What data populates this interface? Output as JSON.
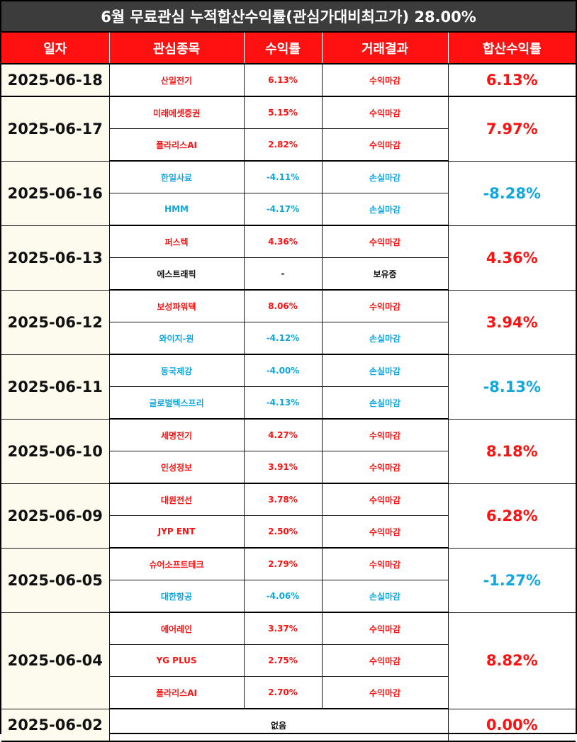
{
  "title": "6월 무료관심 누적합산수익률(관심가대비최고가) 28.00%",
  "headers": [
    "일자",
    "관심종목",
    "수익률",
    "거래결과",
    "합산수익률"
  ],
  "colors": {
    "header_bg": "#ff1111",
    "title_bg": "#3c3c3c",
    "gain": "#ff1111",
    "loss": "#10a6e0",
    "date_bg": "#fdfbee"
  },
  "groups": [
    {
      "date": "2025-06-18",
      "total": "6.13%",
      "total_class": "gain",
      "rows": [
        {
          "stock": "산일전기",
          "return": "6.13%",
          "result": "수익마감",
          "cls": "gain"
        }
      ]
    },
    {
      "date": "2025-06-17",
      "total": "7.97%",
      "total_class": "gain",
      "rows": [
        {
          "stock": "미래에셋증권",
          "return": "5.15%",
          "result": "수익마감",
          "cls": "gain"
        },
        {
          "stock": "폴라리스AI",
          "return": "2.82%",
          "result": "수익마감",
          "cls": "gain"
        }
      ]
    },
    {
      "date": "2025-06-16",
      "total": "-8.28%",
      "total_class": "loss",
      "rows": [
        {
          "stock": "한일사료",
          "return": "-4.11%",
          "result": "손실마감",
          "cls": "loss"
        },
        {
          "stock": "HMM",
          "return": "-4.17%",
          "result": "손실마감",
          "cls": "loss"
        }
      ]
    },
    {
      "date": "2025-06-13",
      "total": "4.36%",
      "total_class": "gain",
      "rows": [
        {
          "stock": "퍼스텍",
          "return": "4.36%",
          "result": "수익마감",
          "cls": "gain"
        },
        {
          "stock": "에스트래픽",
          "return": "-",
          "result": "보유중",
          "cls": "hold"
        }
      ]
    },
    {
      "date": "2025-06-12",
      "total": "3.94%",
      "total_class": "gain",
      "rows": [
        {
          "stock": "보성파워텍",
          "return": "8.06%",
          "result": "수익마감",
          "cls": "gain"
        },
        {
          "stock": "와이지-원",
          "return": "-4.12%",
          "result": "손실마감",
          "cls": "loss"
        }
      ]
    },
    {
      "date": "2025-06-11",
      "total": "-8.13%",
      "total_class": "loss",
      "rows": [
        {
          "stock": "동국제강",
          "return": "-4.00%",
          "result": "손실마감",
          "cls": "loss"
        },
        {
          "stock": "글로벌텍스프리",
          "return": "-4.13%",
          "result": "손실마감",
          "cls": "loss"
        }
      ]
    },
    {
      "date": "2025-06-10",
      "total": "8.18%",
      "total_class": "gain",
      "rows": [
        {
          "stock": "세명전기",
          "return": "4.27%",
          "result": "수익마감",
          "cls": "gain"
        },
        {
          "stock": "인성정보",
          "return": "3.91%",
          "result": "수익마감",
          "cls": "gain"
        }
      ]
    },
    {
      "date": "2025-06-09",
      "total": "6.28%",
      "total_class": "gain",
      "rows": [
        {
          "stock": "대원전선",
          "return": "3.78%",
          "result": "수익마감",
          "cls": "gain"
        },
        {
          "stock": "JYP ENT",
          "return": "2.50%",
          "result": "수익마감",
          "cls": "gain"
        }
      ]
    },
    {
      "date": "2025-06-05",
      "total": "-1.27%",
      "total_class": "loss",
      "rows": [
        {
          "stock": "슈어소프트테크",
          "return": "2.79%",
          "result": "수익마감",
          "cls": "gain"
        },
        {
          "stock": "대한항공",
          "return": "-4.06%",
          "result": "손실마감",
          "cls": "loss"
        }
      ]
    },
    {
      "date": "2025-06-04",
      "total": "8.82%",
      "total_class": "gain",
      "rows": [
        {
          "stock": "에어레인",
          "return": "3.37%",
          "result": "수익마감",
          "cls": "gain"
        },
        {
          "stock": "YG PLUS",
          "return": "2.75%",
          "result": "수익마감",
          "cls": "gain"
        },
        {
          "stock": "폴라리스AI",
          "return": "2.70%",
          "result": "수익마감",
          "cls": "gain"
        }
      ]
    },
    {
      "date": "2025-06-02",
      "total": "0.00%",
      "total_class": "gain",
      "none_label": "없음",
      "rows": []
    }
  ]
}
